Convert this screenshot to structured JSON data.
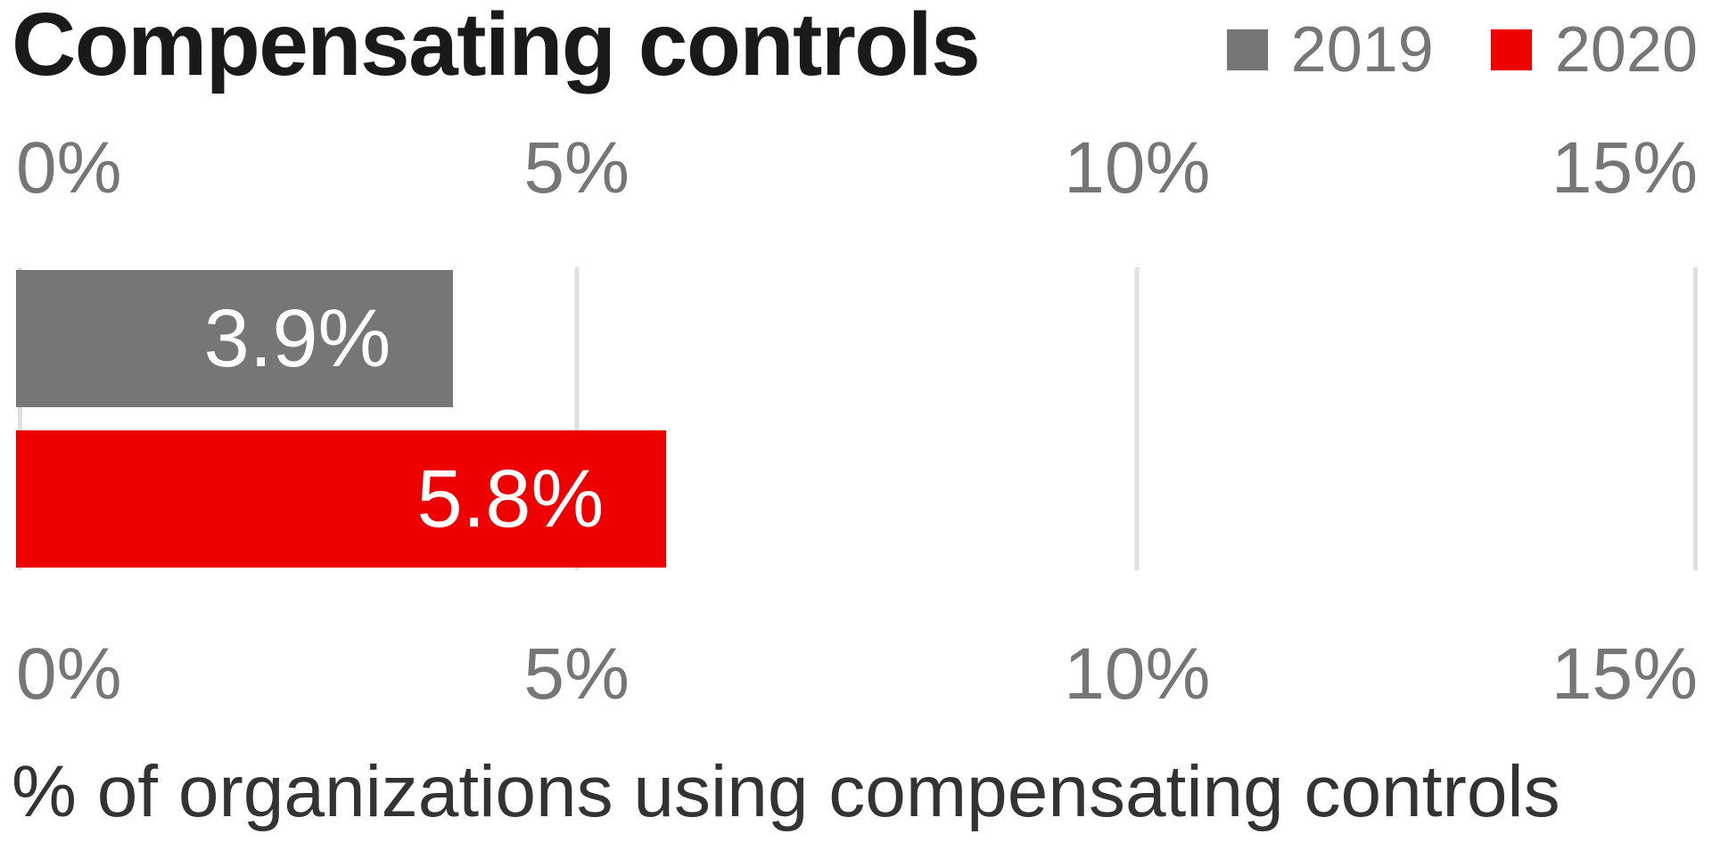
{
  "chart_data": {
    "type": "bar",
    "orientation": "horizontal",
    "title": "Compensating controls",
    "categories": [
      "Compensating controls"
    ],
    "series": [
      {
        "name": "2019",
        "value": 3.9,
        "label": "3.9%",
        "color": "#767676"
      },
      {
        "name": "2020",
        "value": 5.8,
        "label": "5.8%",
        "color": "#ee0000"
      }
    ],
    "x_ticks": [
      "0%",
      "5%",
      "10%",
      "15%"
    ],
    "xlim": [
      0,
      15
    ],
    "xlabel": "% of organizations using compensating controls",
    "grid": "vertical-gridlines-on",
    "legend_position": "top-right",
    "colors": {
      "bar_2019": "#767676",
      "bar_2020": "#ee0000",
      "gridline": "#e0e0e0",
      "axis_text": "#767676",
      "title_text": "#1a1a1a",
      "caption_text": "#333333",
      "bar_value_text": "#ffffff",
      "background": "#ffffff"
    }
  }
}
